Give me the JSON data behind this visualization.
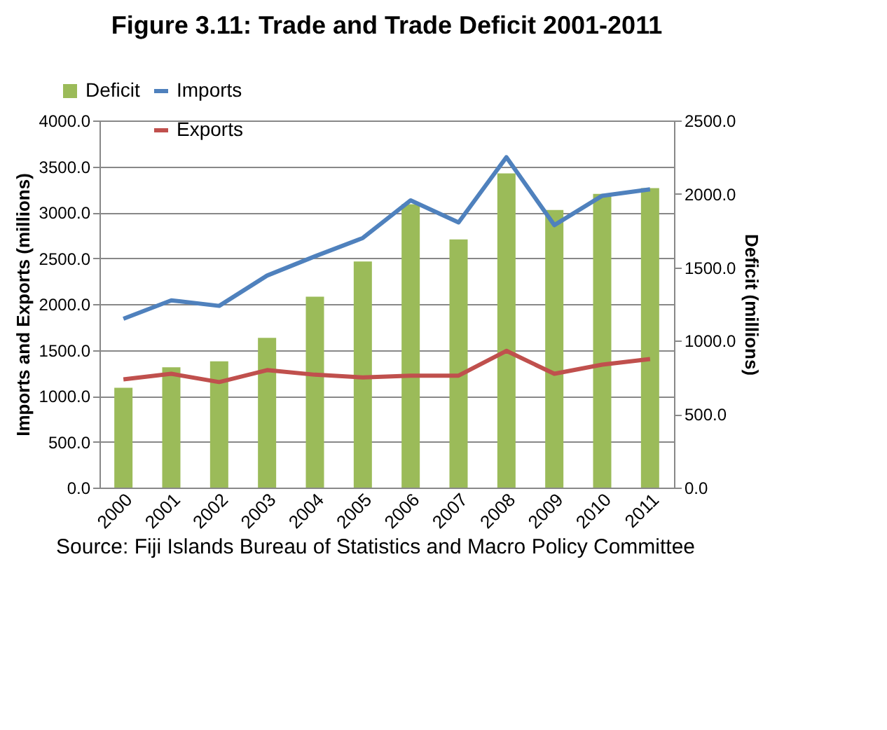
{
  "chart_data": {
    "type": "bar",
    "title": "Figure 3.11: Trade and Trade Deficit 2001-2011",
    "categories": [
      "2000",
      "2001",
      "2002",
      "2003",
      "2004",
      "2005",
      "2006",
      "2007",
      "2008",
      "2009",
      "2010",
      "2011"
    ],
    "series": [
      {
        "name": "Deficit",
        "axis": "y2",
        "color": "#9bbb59",
        "values": [
          680,
          820,
          860,
          1020,
          1300,
          1540,
          1930,
          1690,
          2140,
          1890,
          2000,
          2040
        ]
      },
      {
        "name": "Imports",
        "type": "line",
        "color": "#4f81bd",
        "values": [
          1840,
          2040,
          1980,
          2310,
          2520,
          2720,
          3130,
          2890,
          3600,
          2860,
          3180,
          3250
        ]
      },
      {
        "name": "Exports",
        "type": "line",
        "color": "#c0504d",
        "values": [
          1180,
          1240,
          1150,
          1280,
          1230,
          1200,
          1220,
          1220,
          1490,
          1240,
          1340,
          1400
        ]
      }
    ],
    "ylabel": "Imports and Exports (millions)",
    "y2label": "Deficit (millions)",
    "ylim": [
      0,
      4000
    ],
    "yticks": [
      {
        "value": 0,
        "label": "0.0"
      },
      {
        "value": 500,
        "label": "500.0"
      },
      {
        "value": 1000,
        "label": "1000.0"
      },
      {
        "value": 1500,
        "label": "1500.0"
      },
      {
        "value": 2000,
        "label": "2000.0"
      },
      {
        "value": 2500,
        "label": "2500.0"
      },
      {
        "value": 3000,
        "label": "3000.0"
      },
      {
        "value": 3500,
        "label": "3500.0"
      },
      {
        "value": 4000,
        "label": "4000.0"
      }
    ],
    "y2lim": [
      0,
      2500
    ],
    "y2ticks": [
      {
        "value": 0,
        "label": "0.0"
      },
      {
        "value": 500,
        "label": "500.0"
      },
      {
        "value": 1000,
        "label": "1000.0"
      },
      {
        "value": 1500,
        "label": "1500.0"
      },
      {
        "value": 2000,
        "label": "2000.0"
      },
      {
        "value": 2500,
        "label": "2500.0"
      }
    ],
    "grid": "y",
    "legend": "top left",
    "annotations": [
      "Source: Fiji Islands Bureau of Statistics and Macro Policy Committee"
    ]
  }
}
